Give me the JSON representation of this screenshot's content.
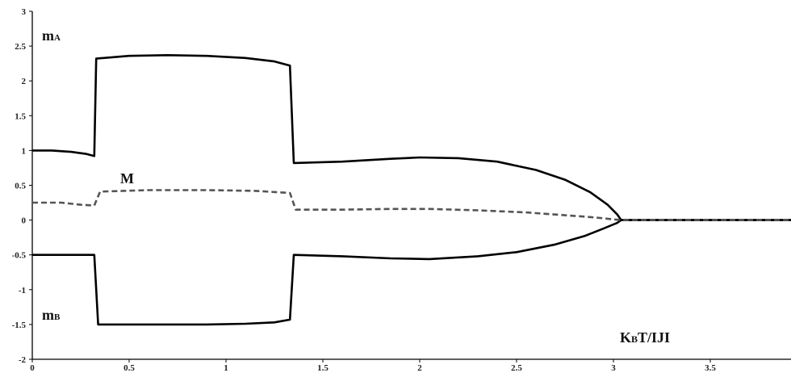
{
  "chart_data": {
    "type": "line",
    "title": "",
    "xlabel": "KBT/IJI",
    "xlabel_parts": {
      "main1": "K",
      "sub": "B",
      "main2": "T/IJI"
    },
    "ylabel": "",
    "xlim": [
      0,
      4
    ],
    "ylim": [
      -2,
      3
    ],
    "grid": false,
    "xticks": [
      0,
      0.5,
      1,
      1.5,
      2,
      2.5,
      3,
      3.5
    ],
    "xtick_labels": [
      "0",
      "0.5",
      "1",
      "1.5",
      "2",
      "2.5",
      "3",
      "3.5"
    ],
    "yticks": [
      -2,
      -1.5,
      -1,
      -0.5,
      0,
      0.5,
      1,
      1.5,
      2,
      2.5,
      3
    ],
    "ytick_labels": [
      "-2",
      "-1.5",
      "-1",
      "-0.5",
      "0",
      "0.5",
      "1",
      "1.5",
      "2",
      "2.5",
      "3"
    ],
    "series": [
      {
        "name": "mA",
        "label_parts": {
          "main": "m",
          "sub": "A"
        },
        "style": "solid",
        "color": "#000000",
        "points": [
          [
            0,
            1.0
          ],
          [
            0.1,
            1.0
          ],
          [
            0.2,
            0.98
          ],
          [
            0.28,
            0.95
          ],
          [
            0.32,
            0.92
          ],
          [
            0.33,
            2.32
          ],
          [
            0.5,
            2.36
          ],
          [
            0.7,
            2.37
          ],
          [
            0.9,
            2.36
          ],
          [
            1.1,
            2.33
          ],
          [
            1.25,
            2.28
          ],
          [
            1.33,
            2.22
          ],
          [
            1.35,
            0.82
          ],
          [
            1.6,
            0.84
          ],
          [
            1.85,
            0.88
          ],
          [
            2.0,
            0.9
          ],
          [
            2.2,
            0.89
          ],
          [
            2.4,
            0.84
          ],
          [
            2.6,
            0.72
          ],
          [
            2.75,
            0.58
          ],
          [
            2.88,
            0.4
          ],
          [
            2.97,
            0.22
          ],
          [
            3.02,
            0.08
          ],
          [
            3.04,
            0.0
          ],
          [
            4.0,
            0.0
          ]
        ]
      },
      {
        "name": "mB",
        "label_parts": {
          "main": "m",
          "sub": "B"
        },
        "style": "solid",
        "color": "#000000",
        "points": [
          [
            0,
            -0.5
          ],
          [
            0.2,
            -0.5
          ],
          [
            0.32,
            -0.5
          ],
          [
            0.34,
            -1.5
          ],
          [
            0.6,
            -1.5
          ],
          [
            0.9,
            -1.5
          ],
          [
            1.1,
            -1.49
          ],
          [
            1.25,
            -1.47
          ],
          [
            1.33,
            -1.43
          ],
          [
            1.35,
            -0.5
          ],
          [
            1.6,
            -0.52
          ],
          [
            1.85,
            -0.55
          ],
          [
            2.05,
            -0.56
          ],
          [
            2.3,
            -0.52
          ],
          [
            2.5,
            -0.46
          ],
          [
            2.7,
            -0.35
          ],
          [
            2.85,
            -0.23
          ],
          [
            2.95,
            -0.12
          ],
          [
            3.02,
            -0.04
          ],
          [
            3.04,
            0.0
          ],
          [
            4.0,
            0.0
          ]
        ]
      },
      {
        "name": "M",
        "label_parts": {
          "main": "M",
          "sub": ""
        },
        "style": "dashed",
        "color": "#555555",
        "points": [
          [
            0,
            0.25
          ],
          [
            0.15,
            0.25
          ],
          [
            0.25,
            0.22
          ],
          [
            0.32,
            0.21
          ],
          [
            0.35,
            0.41
          ],
          [
            0.6,
            0.43
          ],
          [
            0.9,
            0.43
          ],
          [
            1.15,
            0.42
          ],
          [
            1.33,
            0.39
          ],
          [
            1.36,
            0.15
          ],
          [
            1.6,
            0.15
          ],
          [
            1.85,
            0.16
          ],
          [
            2.05,
            0.16
          ],
          [
            2.3,
            0.14
          ],
          [
            2.55,
            0.11
          ],
          [
            2.75,
            0.07
          ],
          [
            2.9,
            0.04
          ],
          [
            3.0,
            0.01
          ],
          [
            3.04,
            0.0
          ],
          [
            4.0,
            0.0
          ]
        ]
      }
    ]
  }
}
